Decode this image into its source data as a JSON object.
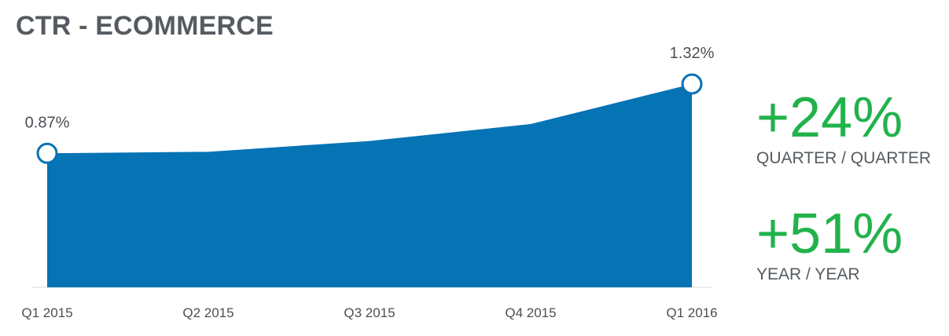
{
  "title": "CTR - ECOMMERCE",
  "chart_data": {
    "type": "area",
    "title": "CTR - ECOMMERCE",
    "xlabel": "",
    "ylabel": "",
    "categories": [
      "Q1 2015",
      "Q2 2015",
      "Q3 2015",
      "Q4 2015",
      "Q1 2016"
    ],
    "values": [
      0.87,
      0.88,
      0.95,
      1.06,
      1.32
    ],
    "unit": "%",
    "ylim": [
      0,
      1.4
    ],
    "grid": false,
    "data_labels": [
      {
        "index": 0,
        "text": "0.87%"
      },
      {
        "index": 4,
        "text": "1.32%"
      }
    ],
    "colors": {
      "fill": "#0673b4",
      "marker_stroke": "#0673b4",
      "marker_fill": "#ffffff",
      "baseline": "#d9d9d9"
    }
  },
  "stats": [
    {
      "value": "+24%",
      "label": "QUARTER / QUARTER",
      "color": "#22b24c"
    },
    {
      "value": "+51%",
      "label": "YEAR / YEAR",
      "color": "#22b24c"
    }
  ]
}
